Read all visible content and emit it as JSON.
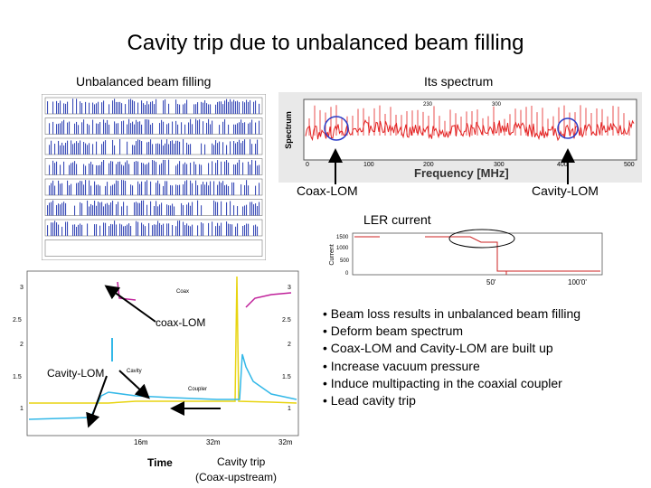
{
  "slide": {
    "title": "Cavity trip due to unbalanced beam filling"
  },
  "labels": {
    "unbalanced": "Unbalanced beam filling",
    "spectrum": "Its spectrum",
    "coax_lom": "Coax-LOM",
    "cavity_lom": "Cavity-LOM",
    "ler_current": "LER current",
    "coax_lom_small": "coax-LOM",
    "cavity_lom_small": "Cavity-LOM",
    "cavity_trip": "Cavity trip",
    "cavity_trip_sub": "(Coax-upstream)"
  },
  "bullets": [
    "• Beam loss results in unbalanced beam filling",
    "• Deform beam spectrum",
    "• Coax-LOM and Cavity-LOM are built up",
    "• Increase vacuum pressure",
    "• Induce multipacting in the coaxial coupler",
    "• Lead cavity trip"
  ],
  "spectrum_plot": {
    "ylabel": "Spectrum",
    "xlabel": "Frequency [MHz]",
    "xticks": [
      "0",
      "100",
      "200",
      "300",
      "400",
      "500"
    ],
    "top_ticks": [
      "230",
      "300"
    ],
    "colors": {
      "trace": "#e32020",
      "circle": "#2a3cc8",
      "frame_bg": "#e9e9e9"
    }
  },
  "ler_plot": {
    "ylabel": "Current",
    "yticks": [
      "1500",
      "1000",
      "500",
      "0"
    ],
    "xticks": [
      "50'",
      "100'0'"
    ],
    "colors": {
      "trace": "#cc2222"
    }
  },
  "time_plot": {
    "xlabel": "Time",
    "left_ticks": [
      "3",
      "2.5",
      "2",
      "1.5",
      "1"
    ],
    "right_ticks": [
      "3",
      "2.5",
      "2",
      "1.5",
      "1"
    ],
    "xticks": [
      "16m",
      "32m",
      "32m"
    ],
    "trace_labels": [
      "Coax",
      "Cavity",
      "Coupler"
    ],
    "colors": {
      "coax": "#c0209a",
      "cavity": "#33b8e8",
      "coupler": "#e8d410"
    }
  }
}
